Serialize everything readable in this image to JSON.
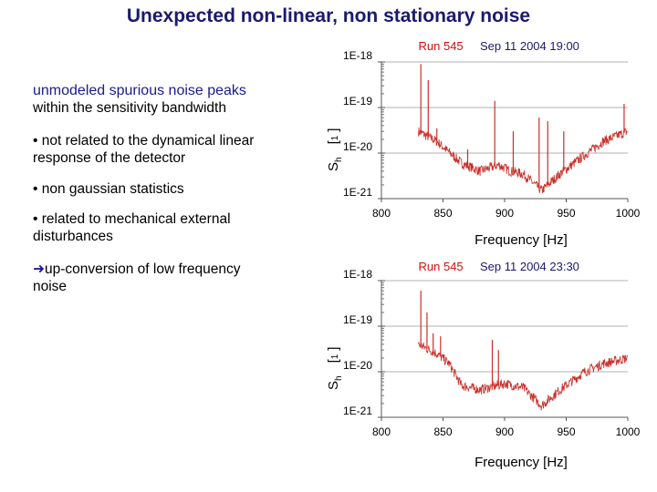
{
  "title": "Unexpected non-linear, non stationary noise",
  "left_text": {
    "heading_line1": "unmodeled spurious noise peaks",
    "heading_line2": "within the sensitivity bandwidth",
    "bullet1_line1": "• not related to the dynamical linear",
    "bullet1_line2": "response of the detector",
    "bullet2": "• non gaussian statistics",
    "bullet3_line1": "• related to mechanical external",
    "bullet3_line2": "disturbances",
    "arrow_icon": "➜",
    "arrow_line1": "up-conversion of low frequency",
    "arrow_line2": "noise"
  },
  "colors": {
    "title": "#1a1a6e",
    "heading": "#1a1a8c",
    "trace": "#c8302a",
    "run_label": "#d01010",
    "grid": "#b0b0b0"
  },
  "chart_data": [
    {
      "type": "line",
      "run_label": "Run 545",
      "timestamp": "Sep 11 2004  19:00",
      "xlabel": "Frequency  [Hz]",
      "ylabel": "S_h  [1/Hz^2]",
      "ylabel_S": "S",
      "ylabel_sub": "h",
      "ylabel_unit_open": "[",
      "ylabel_unit_mid": "1",
      "ylabel_unit_close": "]",
      "xlim": [
        800,
        1000
      ],
      "ylim": [
        1e-21,
        1e-18
      ],
      "yscale": "log",
      "xticks": [
        "800",
        "850",
        "900",
        "950",
        "1000"
      ],
      "yticks": [
        "1E-18",
        "1E-19",
        "1E-20",
        "1E-21"
      ],
      "baseline": [
        [
          830,
          3e-20
        ],
        [
          845,
          1.8e-20
        ],
        [
          865,
          6e-21
        ],
        [
          880,
          4e-21
        ],
        [
          895,
          5.5e-21
        ],
        [
          905,
          4e-21
        ],
        [
          915,
          3.5e-21
        ],
        [
          930,
          1.5e-21
        ],
        [
          945,
          3.5e-21
        ],
        [
          965,
          9e-21
        ],
        [
          980,
          1.8e-20
        ],
        [
          1000,
          3e-20
        ]
      ],
      "peaks": [
        [
          832,
          9e-19
        ],
        [
          838,
          4e-19
        ],
        [
          845,
          3.5e-20
        ],
        [
          870,
          1.2e-20
        ],
        [
          892,
          1.4e-19
        ],
        [
          907,
          3e-20
        ],
        [
          928,
          6e-20
        ],
        [
          935,
          5e-20
        ],
        [
          948,
          3e-20
        ],
        [
          997,
          1.2e-19
        ]
      ]
    },
    {
      "type": "line",
      "run_label": "Run 545",
      "timestamp": "Sep 11 2004  23:30",
      "xlabel": "Frequency  [Hz]",
      "ylabel": "S_h  [1/Hz^2]",
      "ylabel_S": "S",
      "ylabel_sub": "h",
      "ylabel_unit_open": "[",
      "ylabel_unit_mid": "1",
      "ylabel_unit_close": "]",
      "xlim": [
        800,
        1000
      ],
      "ylim": [
        1e-21,
        1e-18
      ],
      "yscale": "log",
      "xticks": [
        "800",
        "850",
        "900",
        "950",
        "1000"
      ],
      "yticks": [
        "1E-18",
        "1E-19",
        "1E-20",
        "1E-21"
      ],
      "baseline": [
        [
          830,
          4e-20
        ],
        [
          845,
          2.5e-20
        ],
        [
          855,
          1.5e-20
        ],
        [
          865,
          5e-21
        ],
        [
          880,
          4e-21
        ],
        [
          900,
          5.5e-21
        ],
        [
          915,
          4.5e-21
        ],
        [
          930,
          1.8e-21
        ],
        [
          945,
          4e-21
        ],
        [
          965,
          1e-20
        ],
        [
          980,
          1.5e-20
        ],
        [
          1000,
          2e-20
        ]
      ],
      "peaks": [
        [
          832,
          6e-19
        ],
        [
          837,
          2e-19
        ],
        [
          842,
          7e-20
        ],
        [
          848,
          6e-20
        ],
        [
          875,
          4e-21
        ],
        [
          890,
          5e-20
        ],
        [
          895,
          3e-20
        ]
      ]
    }
  ]
}
